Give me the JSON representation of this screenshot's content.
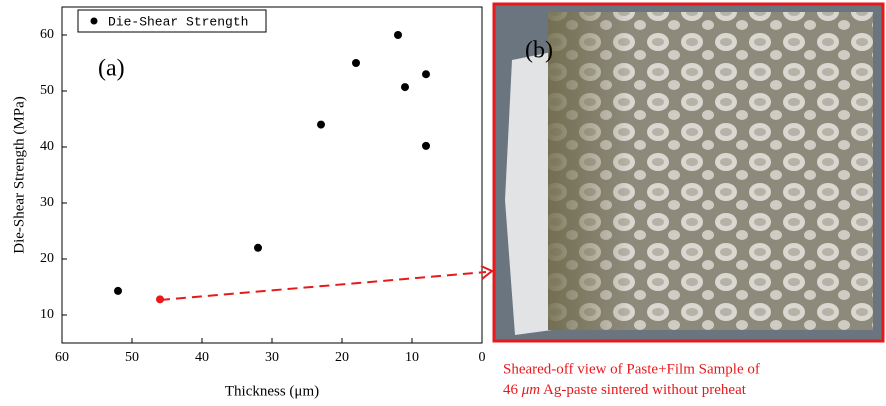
{
  "chart_data": {
    "type": "scatter",
    "x_label": "Thickness (μm)",
    "y_label": "Die-Shear Strength (MPa)",
    "x": [
      52,
      46,
      32,
      23,
      18,
      12,
      11,
      8,
      8
    ],
    "series": [
      {
        "name": "Die-Shear Strength",
        "color": "#000000",
        "point_colors": [
          "#000000",
          "#e8191c",
          "#000000",
          "#000000",
          "#000000",
          "#000000",
          "#000000",
          "#000000",
          "#000000"
        ],
        "values": [
          14.3,
          12.8,
          22,
          44,
          55,
          60,
          50.7,
          53,
          40.2
        ]
      }
    ],
    "xlim": [
      60,
      0
    ],
    "xticks": [
      60,
      50,
      40,
      30,
      20,
      10,
      0
    ],
    "ylim": [
      5,
      65
    ],
    "yticks": [
      10,
      20,
      30,
      40,
      50,
      60
    ],
    "grid": false,
    "legend": "upper left",
    "annotations": [
      "(a)",
      "(b)"
    ],
    "caption": {
      "line1": "Sheared-off view of Paste+Film Sample of",
      "line2": [
        "46 ",
        "μm",
        " Ag-paste sintered without preheat"
      ]
    }
  }
}
